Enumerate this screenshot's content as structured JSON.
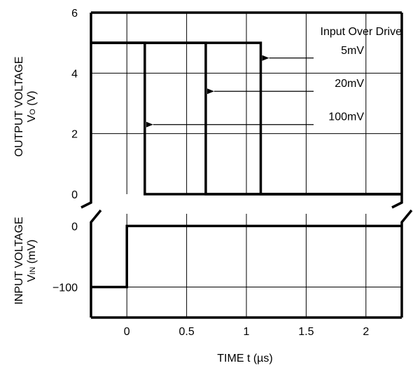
{
  "chart_data": {
    "type": "line",
    "title": "",
    "xlabel": "TIME t (µs)",
    "x_range": [
      -0.3,
      2.3
    ],
    "x_ticks": [
      0,
      0.5,
      1,
      1.5,
      2
    ],
    "x_tick_labels": [
      "0",
      "0.5",
      "1",
      "1.5",
      "2"
    ],
    "grid": true,
    "upper_panel": {
      "ylabel": "OUTPUT VOLTAGE",
      "ylabel_line2_main": "V",
      "ylabel_line2_sub": "O",
      "ylabel_line2_unit": " (V)",
      "y_range": [
        0,
        6
      ],
      "y_ticks": [
        0,
        2,
        4,
        6
      ],
      "y_tick_labels": [
        "0",
        "2",
        "4",
        "6"
      ],
      "series": [
        {
          "name": "5mV",
          "x": [
            -0.3,
            1.12,
            1.12,
            2.3
          ],
          "y": [
            5,
            5,
            0,
            0
          ],
          "label_y": 4.5
        },
        {
          "name": "20mV",
          "x": [
            -0.3,
            0.66,
            0.66,
            2.3
          ],
          "y": [
            5,
            5,
            0,
            0
          ],
          "label_y": 3.4
        },
        {
          "name": "100mV",
          "x": [
            -0.3,
            0.15,
            0.15,
            2.3
          ],
          "y": [
            5,
            5,
            0,
            0
          ],
          "label_y": 2.3
        }
      ],
      "legend_title": "Input Over Drive"
    },
    "lower_panel": {
      "ylabel": "INPUT VOLTAGE",
      "ylabel_line2_main": "V",
      "ylabel_line2_sub": "IN",
      "ylabel_line2_unit": " (mV)",
      "y_range": [
        -150,
        20
      ],
      "y_ticks": [
        0,
        -100
      ],
      "y_tick_labels": [
        "0",
        "−100"
      ],
      "series": [
        {
          "name": "",
          "x": [
            -0.3,
            0,
            0,
            2.3
          ],
          "y": [
            -100,
            -100,
            0,
            0
          ]
        }
      ]
    }
  }
}
